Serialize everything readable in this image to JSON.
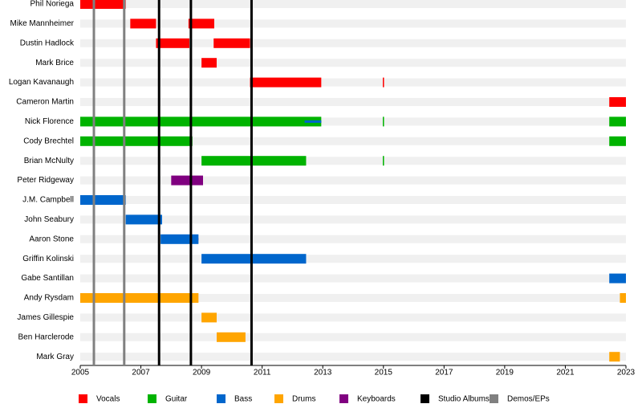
{
  "chart_data": {
    "type": "timeline",
    "categories": [
      "Phil Noriega",
      "Mike Mannheimer",
      "Dustin Hadlock",
      "Mark Brice",
      "Logan Kavanaugh",
      "Cameron Martin",
      "Nick Florence",
      "Cody Brechtel",
      "Brian McNulty",
      "Peter Ridgeway",
      "J.M. Campbell",
      "John Seabury",
      "Aaron Stone",
      "Griffin Kolinski",
      "Gabe Santillan",
      "Andy Rysdam",
      "James Gillespie",
      "Ben Harclerode",
      "Mark Gray"
    ],
    "series": [
      {
        "name": "Vocals",
        "color": "#ff0000",
        "values": [
          [
            [
              2005,
              2006.5
            ]
          ],
          [
            [
              2006.65,
              2007.5
            ],
            [
              2008.57,
              2009.42
            ]
          ],
          [
            [
              2007.5,
              2008.6
            ],
            [
              2009.4,
              2010.6
            ]
          ],
          [
            [
              2009,
              2009.5
            ]
          ],
          [
            [
              2010.6,
              2012.95
            ],
            [
              2014.98,
              2015.02
            ]
          ],
          [
            [
              2022.45,
              2023
            ]
          ],
          [],
          [],
          [],
          [],
          [],
          [],
          [
            [
              2007.7,
              2008.9
            ]
          ],
          [],
          [],
          [],
          [],
          [],
          []
        ]
      },
      {
        "name": "Guitar",
        "color": "#00b300",
        "values": [
          [],
          [],
          [],
          [],
          [],
          [],
          [
            [
              2005,
              2012.95
            ],
            [
              2014.98,
              2015.02
            ],
            [
              2022.45,
              2023
            ]
          ],
          [
            [
              2005,
              2008.7
            ],
            [
              2022.45,
              2023
            ]
          ],
          [
            [
              2009,
              2012.45
            ],
            [
              2014.98,
              2015.02
            ]
          ],
          [],
          [],
          [],
          [],
          [],
          [],
          [],
          [],
          [],
          []
        ]
      },
      {
        "name": "Bass",
        "color": "#0066cc",
        "values": [
          [],
          [],
          [],
          [],
          [],
          [],
          [
            [
              2012.4,
              2012.95
            ]
          ],
          [],
          [],
          [],
          [
            [
              2005,
              2006.5
            ]
          ],
          [
            [
              2006.5,
              2007.7
            ]
          ],
          [
            [
              2007.65,
              2008.9
            ]
          ],
          [
            [
              2009,
              2012.45
            ]
          ],
          [
            [
              2022.45,
              2023
            ]
          ],
          [],
          [],
          [],
          []
        ]
      },
      {
        "name": "Drums",
        "color": "#ffa500",
        "values": [
          [],
          [],
          [],
          [],
          [],
          [],
          [],
          [],
          [],
          [],
          [],
          [],
          [],
          [],
          [],
          [
            [
              2005,
              2008.9
            ],
            [
              2022.8,
              2023
            ]
          ],
          [
            [
              2009,
              2009.5
            ]
          ],
          [
            [
              2009.5,
              2010.45
            ]
          ],
          [
            [
              2022.45,
              2022.8
            ]
          ]
        ]
      },
      {
        "name": "Keyboards",
        "color": "#800080",
        "values": [
          [],
          [],
          [],
          [],
          [],
          [],
          [],
          [],
          [],
          [
            [
              2008,
              2009.05
            ]
          ],
          [],
          [],
          [],
          [],
          [],
          [],
          [],
          [],
          []
        ]
      }
    ],
    "events": [
      {
        "name": "Studio Albums",
        "color": "#000000",
        "values": [
          2007.6,
          2008.65,
          2010.65
        ]
      },
      {
        "name": "Demos/EPs",
        "color": "#808080",
        "values": [
          2005.45,
          2006.45
        ]
      }
    ],
    "xlim": [
      2005,
      2023
    ],
    "xticks": [
      2005,
      2007,
      2009,
      2011,
      2013,
      2015,
      2017,
      2019,
      2021,
      2023
    ]
  }
}
